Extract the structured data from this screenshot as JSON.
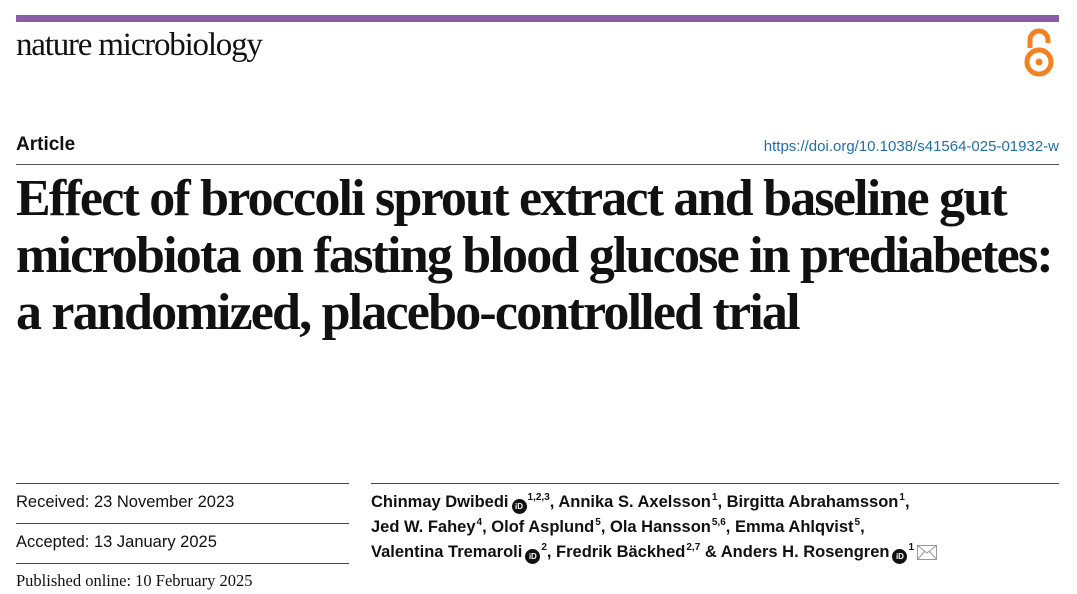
{
  "header": {
    "journal_name": "nature microbiology",
    "open_access_icon": "open-access-icon",
    "accent_color": "#8a5ea7",
    "oa_color": "#f48120"
  },
  "article": {
    "type": "Article",
    "doi": "https://doi.org/10.1038/s41564-025-01932-w",
    "title": "Effect of broccoli sprout extract and baseline gut microbiota on fasting blood glucose in prediabetes: a randomized, placebo-controlled trial"
  },
  "dates": {
    "received": "Received: 23 November 2023",
    "accepted": "Accepted: 13 January 2025",
    "published": "Published online: 10 February 2025"
  },
  "authors": [
    {
      "name": "Chinmay Dwibedi",
      "orcid": true,
      "affil": "1,2,3",
      "sep": ", "
    },
    {
      "name": "Annika S. Axelsson",
      "orcid": false,
      "affil": "1",
      "sep": ", "
    },
    {
      "name": "Birgitta Abrahamsson",
      "orcid": false,
      "affil": "1",
      "sep": ","
    },
    {
      "name": "Jed W. Fahey",
      "orcid": false,
      "affil": "4",
      "sep": ", "
    },
    {
      "name": "Olof Asplund",
      "orcid": false,
      "affil": "5",
      "sep": ", "
    },
    {
      "name": "Ola Hansson",
      "orcid": false,
      "affil": "5,6",
      "sep": ", "
    },
    {
      "name": "Emma Ahlqvist",
      "orcid": false,
      "affil": "5",
      "sep": ","
    },
    {
      "name": "Valentina Tremaroli",
      "orcid": true,
      "affil": "2",
      "sep": ", "
    },
    {
      "name": "Fredrik Bäckhed",
      "orcid": false,
      "affil": "2,7",
      "sep": " & "
    },
    {
      "name": "Anders H. Rosengren",
      "orcid": true,
      "affil": "1",
      "sep": ""
    }
  ],
  "icons": {
    "orcid_glyph": "iD",
    "mail_icon": "envelope-icon"
  }
}
